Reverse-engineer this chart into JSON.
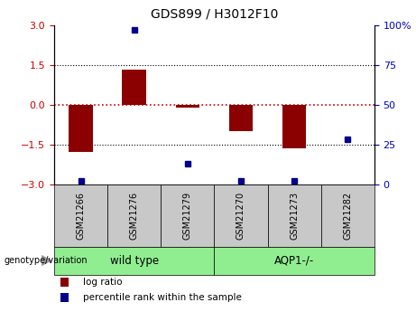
{
  "title": "GDS899 / H3012F10",
  "samples": [
    "GSM21266",
    "GSM21276",
    "GSM21279",
    "GSM21270",
    "GSM21273",
    "GSM21282"
  ],
  "log_ratios": [
    -1.8,
    1.3,
    -0.1,
    -1.0,
    -1.65,
    0.0
  ],
  "percentile_ranks": [
    2,
    97,
    13,
    2,
    2,
    28
  ],
  "group_labels": [
    "wild type",
    "AQP1-/-"
  ],
  "group_ranges": [
    [
      0,
      3
    ],
    [
      3,
      6
    ]
  ],
  "ylim_left": [
    -3,
    3
  ],
  "ylim_right": [
    0,
    100
  ],
  "yticks_left": [
    -3,
    -1.5,
    0,
    1.5,
    3
  ],
  "yticks_right": [
    0,
    25,
    50,
    75,
    100
  ],
  "bar_color": "#8B0000",
  "dot_color": "#00008B",
  "hline_color": "#CC0000",
  "dotline_color": "black",
  "group_label_text": "genotype/variation",
  "tick_label_color_left": "#CC0000",
  "tick_label_color_right": "#0000CC",
  "bar_width": 0.45,
  "sample_box_color": "#C8C8C8",
  "group_box_color": "#90EE90",
  "legend_red_label": "log ratio",
  "legend_blue_label": "percentile rank within the sample"
}
